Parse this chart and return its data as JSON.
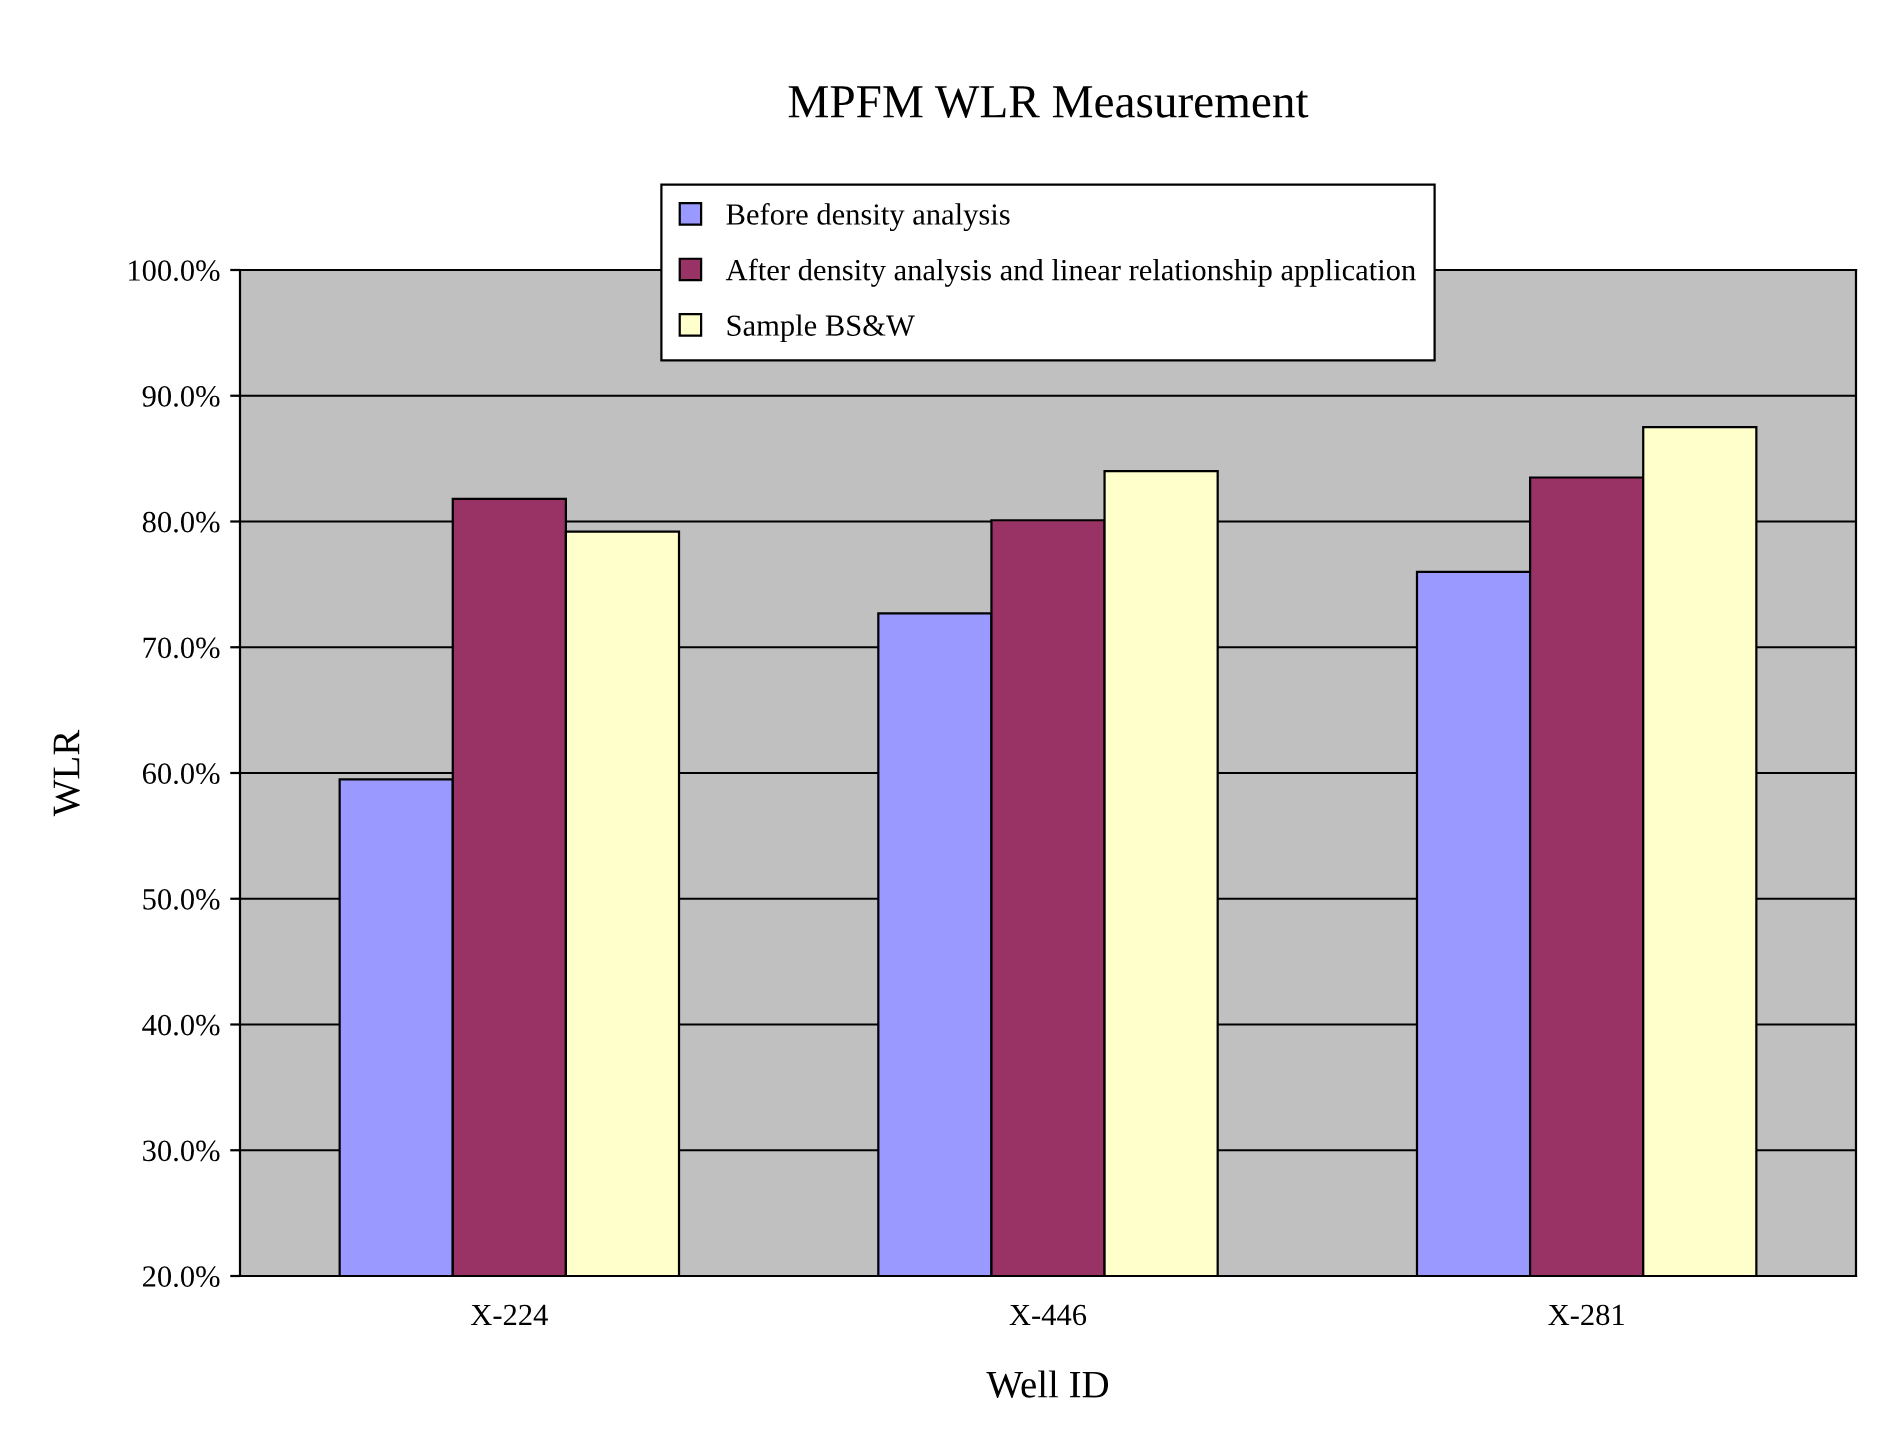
{
  "chart_data": {
    "type": "bar",
    "title": "MPFM WLR Measurement",
    "xlabel": "Well ID",
    "ylabel": "WLR",
    "categories": [
      "X-224",
      "X-446",
      "X-281"
    ],
    "series": [
      {
        "name": "Before density analysis",
        "color": "#9999ff",
        "values": [
          59.5,
          72.7,
          76.0
        ]
      },
      {
        "name": "After density analysis and linear relationship application",
        "color": "#993366",
        "values": [
          81.8,
          80.1,
          83.5
        ]
      },
      {
        "name": "Sample BS&W",
        "color": "#ffffcc",
        "values": [
          79.2,
          84.0,
          87.5
        ]
      }
    ],
    "ylim": [
      20,
      100
    ],
    "yticks": [
      {
        "value": 20,
        "label": "20.0%"
      },
      {
        "value": 30,
        "label": "30.0%"
      },
      {
        "value": 40,
        "label": "40.0%"
      },
      {
        "value": 50,
        "label": "50.0%"
      },
      {
        "value": 60,
        "label": "60.0%"
      },
      {
        "value": 70,
        "label": "70.0%"
      },
      {
        "value": 80,
        "label": "80.0%"
      },
      {
        "value": 90,
        "label": "90.0%"
      },
      {
        "value": 100,
        "label": "100.0%"
      }
    ],
    "grid": "y",
    "legend": "top"
  }
}
